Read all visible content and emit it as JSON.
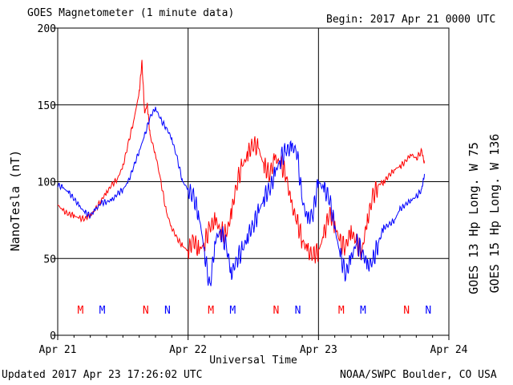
{
  "header": {
    "title": "GOES Magnetometer (1 minute data)",
    "begin": "Begin:  2017 Apr 21 0000 UTC"
  },
  "footer": {
    "updated": "Updated 2017 Apr 23 17:26:02 UTC",
    "source": "NOAA/SWPC Boulder, CO USA"
  },
  "colors": {
    "red": "#ff0000",
    "blue": "#0000ff",
    "grid": "#000000"
  },
  "chart_data": {
    "type": "line",
    "xlabel": "Universal Time",
    "ylabel": "NanoTesla (nT)",
    "xlim": [
      0,
      72
    ],
    "ylim": [
      0,
      200
    ],
    "x_unit": "hours since 2017 Apr 21 0000 UTC",
    "x_ticks": [
      {
        "at": 0,
        "label": "Apr 21"
      },
      {
        "at": 24,
        "label": "Apr 22"
      },
      {
        "at": 48,
        "label": "Apr 23"
      },
      {
        "at": 72,
        "label": "Apr 24"
      }
    ],
    "y_ticks": [
      0,
      50,
      100,
      150,
      200
    ],
    "grid": true,
    "series": [
      {
        "name": "GOES 13 Hp  Long. W 75",
        "color": "#ff0000",
        "x": [
          0,
          1,
          2,
          3,
          4,
          5,
          6,
          7,
          8,
          9,
          10,
          11,
          12,
          13,
          14,
          15,
          15.5,
          16,
          16.5,
          17,
          18,
          19,
          20,
          21,
          22,
          23,
          24,
          25,
          26,
          27,
          28,
          29,
          30,
          31,
          32,
          33,
          34,
          35,
          36,
          37,
          38,
          39,
          40,
          41,
          42,
          43,
          44,
          45,
          46,
          47,
          48,
          49,
          50,
          51,
          52,
          53,
          54,
          55,
          56,
          57,
          58,
          59,
          60,
          61,
          62,
          63,
          64,
          65,
          66,
          67,
          67.5
        ],
        "y": [
          85,
          81,
          79,
          78,
          76,
          76,
          78,
          82,
          88,
          93,
          98,
          102,
          110,
          125,
          140,
          158,
          178,
          145,
          150,
          130,
          118,
          100,
          80,
          70,
          63,
          58,
          55,
          62,
          55,
          60,
          70,
          75,
          68,
          65,
          80,
          100,
          110,
          118,
          125,
          121,
          110,
          105,
          115,
          112,
          105,
          85,
          75,
          62,
          55,
          52,
          55,
          65,
          80,
          72,
          60,
          58,
          68,
          60,
          55,
          75,
          90,
          98,
          100,
          104,
          108,
          110,
          113,
          118,
          115,
          120,
          112
        ]
      },
      {
        "name": "GOES 15 Hp  Long. W 136",
        "color": "#0000ff",
        "x": [
          0,
          1,
          2,
          3,
          4,
          5,
          6,
          7,
          8,
          9,
          10,
          11,
          12,
          13,
          14,
          15,
          16,
          17,
          18,
          19,
          20,
          21,
          22,
          23,
          24,
          25,
          26,
          27,
          28,
          29,
          30,
          31,
          32,
          33,
          34,
          35,
          36,
          37,
          38,
          39,
          40,
          41,
          42,
          43,
          44,
          45,
          46,
          47,
          48,
          49,
          50,
          51,
          52,
          53,
          54,
          55,
          56,
          57,
          58,
          59,
          60,
          61,
          62,
          63,
          64,
          65,
          66,
          67,
          67.5
        ],
        "y": [
          98,
          96,
          93,
          89,
          84,
          80,
          78,
          82,
          86,
          87,
          88,
          92,
          95,
          100,
          110,
          120,
          130,
          142,
          148,
          140,
          135,
          128,
          115,
          100,
          95,
          90,
          78,
          55,
          30,
          62,
          68,
          58,
          40,
          50,
          55,
          65,
          72,
          80,
          90,
          95,
          105,
          115,
          120,
          122,
          121,
          88,
          75,
          80,
          100,
          95,
          90,
          70,
          52,
          40,
          50,
          60,
          55,
          45,
          48,
          60,
          70,
          72,
          75,
          82,
          85,
          88,
          90,
          95,
          105
        ]
      }
    ],
    "annotations": [
      {
        "x": 4.2,
        "text": "M",
        "color": "#ff0000"
      },
      {
        "x": 8.2,
        "text": "M",
        "color": "#0000ff"
      },
      {
        "x": 16.2,
        "text": "N",
        "color": "#ff0000"
      },
      {
        "x": 20.2,
        "text": "N",
        "color": "#0000ff"
      },
      {
        "x": 28.2,
        "text": "M",
        "color": "#ff0000"
      },
      {
        "x": 32.2,
        "text": "M",
        "color": "#0000ff"
      },
      {
        "x": 40.2,
        "text": "N",
        "color": "#ff0000"
      },
      {
        "x": 44.2,
        "text": "N",
        "color": "#0000ff"
      },
      {
        "x": 52.2,
        "text": "M",
        "color": "#ff0000"
      },
      {
        "x": 56.2,
        "text": "M",
        "color": "#0000ff"
      },
      {
        "x": 64.2,
        "text": "N",
        "color": "#ff0000"
      },
      {
        "x": 68.2,
        "text": "N",
        "color": "#0000ff"
      }
    ]
  }
}
